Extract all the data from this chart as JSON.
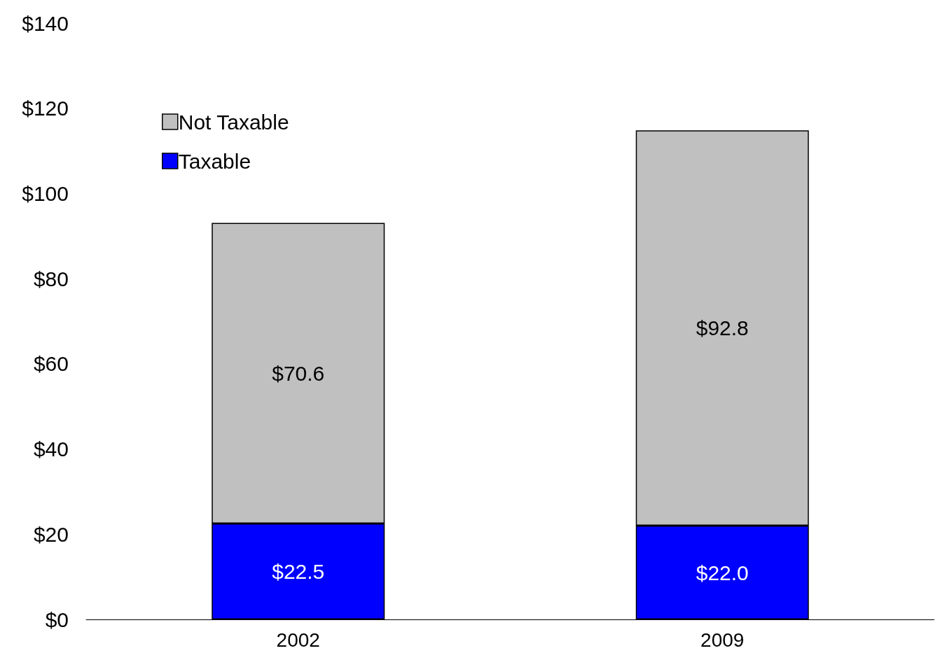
{
  "chart_data": {
    "type": "bar",
    "stacked": true,
    "categories": [
      "2002",
      "2009"
    ],
    "series": [
      {
        "name": "Taxable",
        "color": "#0000ff",
        "values": [
          22.5,
          22.0
        ],
        "value_labels": [
          "$22.5",
          "$22.0"
        ]
      },
      {
        "name": "Not Taxable",
        "color": "#c0c0c0",
        "values": [
          70.6,
          92.8
        ],
        "value_labels": [
          "$70.6",
          "$92.8"
        ]
      }
    ],
    "ylim": [
      0,
      140
    ],
    "yticks": [
      {
        "value": 0,
        "label": "$0"
      },
      {
        "value": 20,
        "label": "$20"
      },
      {
        "value": 40,
        "label": "$40"
      },
      {
        "value": 60,
        "label": "$60"
      },
      {
        "value": 80,
        "label": "$80"
      },
      {
        "value": 100,
        "label": "$100"
      },
      {
        "value": 120,
        "label": "$120"
      },
      {
        "value": 140,
        "label": "$140"
      }
    ],
    "grid": false,
    "legend": "top left"
  }
}
